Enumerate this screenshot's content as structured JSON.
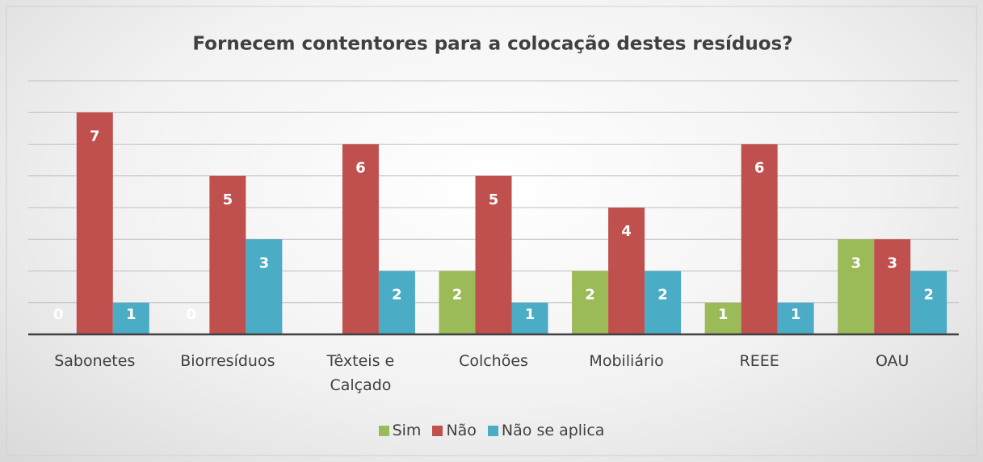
{
  "chart_data": {
    "type": "bar",
    "title": "Fornecem contentores para a colocação destes resíduos?",
    "categories": [
      "Sabonetes",
      "Biorresíduos",
      "Têxteis e Calçado",
      "Colchões",
      "Mobiliário",
      "REEE",
      "OAU"
    ],
    "series": [
      {
        "name": "Sim",
        "color": "#9bbb59",
        "values": [
          0,
          0,
          null,
          2,
          2,
          1,
          3
        ]
      },
      {
        "name": "Não",
        "color": "#c0504d",
        "values": [
          7,
          5,
          6,
          5,
          4,
          6,
          3
        ]
      },
      {
        "name": "Não se aplica",
        "color": "#4bacc6",
        "values": [
          1,
          3,
          2,
          1,
          2,
          1,
          2
        ]
      }
    ],
    "ylim": [
      0,
      8
    ],
    "yticks": [
      0,
      1,
      2,
      3,
      4,
      5,
      6,
      7,
      8
    ],
    "grid": true,
    "legend": "bottom"
  }
}
